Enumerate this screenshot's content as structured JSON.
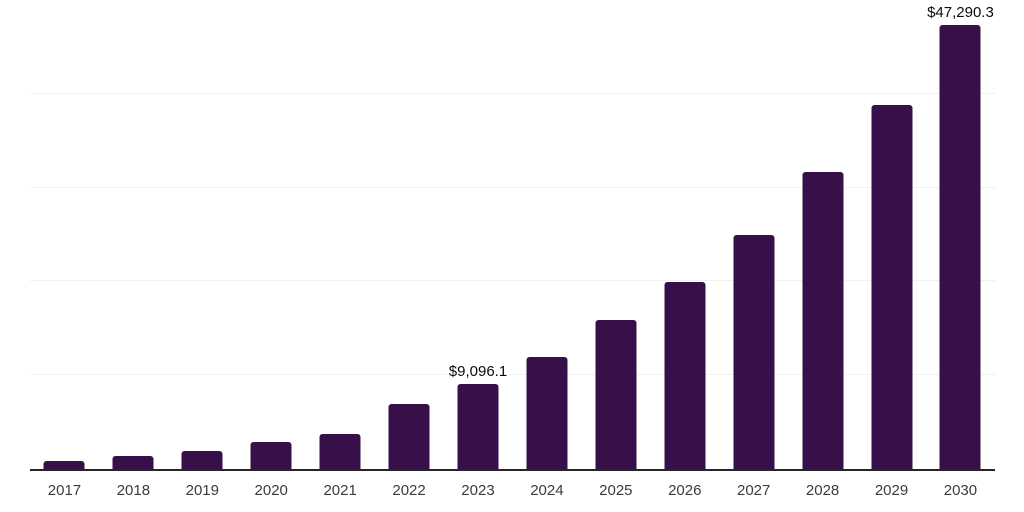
{
  "chart_data": {
    "type": "bar",
    "title": "",
    "xlabel": "",
    "ylabel": "",
    "categories": [
      "2017",
      "2018",
      "2019",
      "2020",
      "2021",
      "2022",
      "2023",
      "2024",
      "2025",
      "2026",
      "2027",
      "2028",
      "2029",
      "2030"
    ],
    "values": [
      850,
      1350,
      1950,
      2900,
      3700,
      6900,
      9096.1,
      11900,
      15850,
      19950,
      25000,
      31700,
      38850,
      47290.3
    ],
    "labeled_points": [
      {
        "category": "2023",
        "label": "$9,096.1"
      },
      {
        "category": "2030",
        "label": "$47,290.3"
      }
    ],
    "ylim": [
      0,
      50000
    ],
    "gridline_step": 10000,
    "grid": true,
    "legend": false,
    "y_axis_tick_labels_visible": false,
    "bar_color": "#37104a"
  },
  "colors": {
    "background": "#ffffff",
    "bar": "#37104a",
    "gridline": "#f1f1f1",
    "axis_line": "#262626",
    "tick_label_text": "#3b3b3b",
    "value_label_text": "#0b0b0b"
  }
}
